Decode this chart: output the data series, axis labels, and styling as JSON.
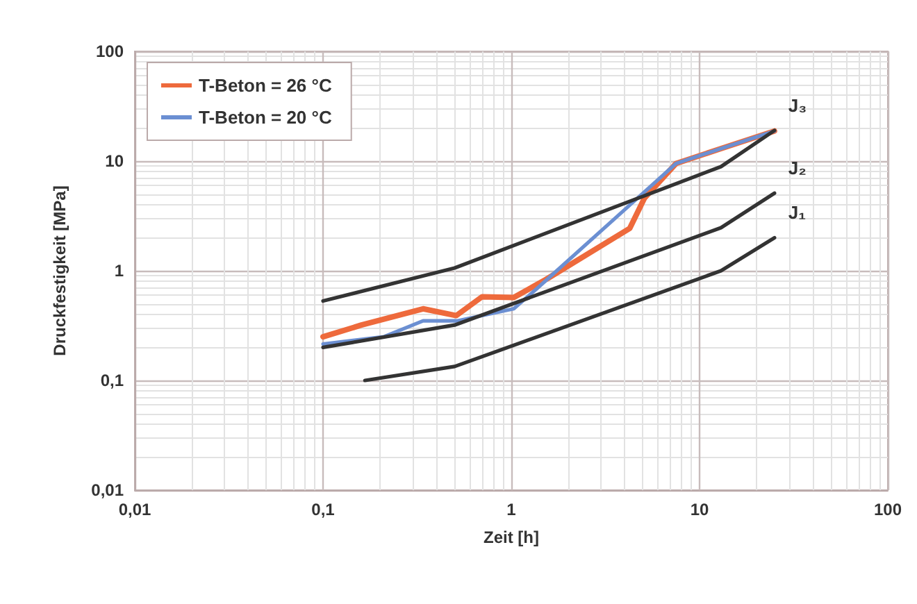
{
  "chart_data": {
    "type": "line",
    "xlabel": "Zeit [h]",
    "ylabel": "Druckfestigkeit [MPa]",
    "log": "xy",
    "grid": true,
    "legend": "top left",
    "marker": "none",
    "line_style": "solid",
    "xlim": [
      0.01,
      100
    ],
    "ylim": [
      0.01,
      100
    ],
    "xticks": [
      {
        "value": 0.01,
        "label": "0,01"
      },
      {
        "value": 0.1,
        "label": "0,1"
      },
      1,
      10,
      100
    ],
    "yticks": [
      {
        "value": 0.01,
        "label": "0,01"
      },
      {
        "value": 0.1,
        "label": "0,1"
      },
      1,
      10,
      100
    ],
    "series": [
      {
        "name": "T-Beton = 26 °C",
        "color": "#ee6a3c",
        "x": [
          0.1,
          0.16,
          0.34,
          0.51,
          0.7,
          1.03,
          1.54,
          4.26,
          5.1,
          7.5,
          13,
          25
        ],
        "values": [
          0.25,
          0.32,
          0.45,
          0.39,
          0.58,
          0.57,
          0.84,
          2.44,
          4.6,
          9.5,
          13,
          18.8
        ]
      },
      {
        "name": "T-Beton = 20 °C",
        "color": "#6b8fd2",
        "x": [
          0.1,
          0.21,
          0.34,
          0.52,
          1.03,
          1.37,
          4.26,
          7.5,
          13,
          25
        ],
        "values": [
          0.215,
          0.25,
          0.35,
          0.35,
          0.45,
          0.69,
          3.97,
          9.5,
          13,
          18.8
        ]
      },
      {
        "name": "J₃",
        "color": "#333333",
        "x": [
          0.1,
          0.5,
          13,
          25
        ],
        "values": [
          0.53,
          1.06,
          8.9,
          19
        ]
      },
      {
        "name": "J₂",
        "color": "#333333",
        "x": [
          0.1,
          0.5,
          13,
          25
        ],
        "values": [
          0.2,
          0.32,
          2.47,
          5.1
        ]
      },
      {
        "name": "J₁",
        "color": "#333333",
        "x": [
          0.167,
          0.5,
          13,
          25
        ],
        "values": [
          0.1,
          0.134,
          1.0,
          2.0
        ]
      }
    ]
  }
}
